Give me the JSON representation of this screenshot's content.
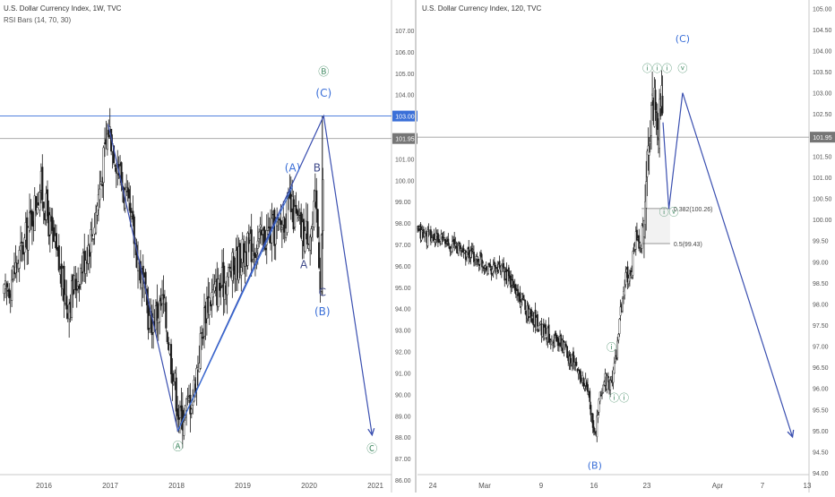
{
  "chart_data": [
    {
      "type": "candlestick",
      "title": "U.S. Dollar Currency Index, 1W, TVC",
      "indicator": "RSI Bars (14, 70, 30)",
      "x_ticks": [
        "2016",
        "2017",
        "2018",
        "2019",
        "2020",
        "2021"
      ],
      "y_ticks": [
        "86.00",
        "87.00",
        "88.00",
        "89.00",
        "90.00",
        "91.00",
        "92.00",
        "93.00",
        "94.00",
        "95.00",
        "96.00",
        "97.00",
        "98.00",
        "99.00",
        "100.00",
        "101.00",
        "102.00",
        "103.00",
        "104.00",
        "105.00",
        "106.00",
        "107.00"
      ],
      "ylim": [
        86,
        107.5
      ],
      "price_labels": [
        {
          "value": 103.0,
          "text": "103.00",
          "color": "#3a6fd8"
        },
        {
          "value": 101.95,
          "text": "101.95",
          "color": "#757575"
        }
      ],
      "hlines": [
        {
          "value": 103.0,
          "color": "#3a6fd8"
        },
        {
          "value": 101.95,
          "color": "#9e9e9e"
        }
      ],
      "series_anchor_points": [
        {
          "x": 2015.4,
          "y": 94.5
        },
        {
          "x": 2015.7,
          "y": 97.0
        },
        {
          "x": 2015.95,
          "y": 99.8
        },
        {
          "x": 2016.15,
          "y": 97.0
        },
        {
          "x": 2016.35,
          "y": 94.2
        },
        {
          "x": 2016.55,
          "y": 95.8
        },
        {
          "x": 2016.75,
          "y": 97.8
        },
        {
          "x": 2016.98,
          "y": 102.5
        },
        {
          "x": 2017.15,
          "y": 100.3
        },
        {
          "x": 2017.35,
          "y": 97.5
        },
        {
          "x": 2017.6,
          "y": 93.3
        },
        {
          "x": 2017.8,
          "y": 94.3
        },
        {
          "x": 2018.05,
          "y": 88.8
        },
        {
          "x": 2018.25,
          "y": 90.0
        },
        {
          "x": 2018.45,
          "y": 94.3
        },
        {
          "x": 2018.7,
          "y": 95.2
        },
        {
          "x": 2019.0,
          "y": 96.6
        },
        {
          "x": 2019.3,
          "y": 97.3
        },
        {
          "x": 2019.55,
          "y": 97.8
        },
        {
          "x": 2019.7,
          "y": 98.8
        },
        {
          "x": 2019.9,
          "y": 97.5
        },
        {
          "x": 2020.05,
          "y": 97.8
        },
        {
          "x": 2020.1,
          "y": 99.0
        },
        {
          "x": 2020.17,
          "y": 95.5
        },
        {
          "x": 2020.22,
          "y": 101.0
        }
      ],
      "wave_path": [
        {
          "x": 2016.97,
          "y": 102.6
        },
        {
          "x": 2018.02,
          "y": 88.3
        },
        {
          "x": 2020.22,
          "y": 103.0
        },
        {
          "x": 2020.95,
          "y": 88.1
        }
      ],
      "wave_inner_path": [
        {
          "x": 2018.02,
          "y": 88.3
        },
        {
          "x": 2019.75,
          "y": 99.7
        }
      ],
      "wave_labels": [
        {
          "text": "Ⓑ",
          "x": 2020.22,
          "y": 104.9,
          "color": "#4a8f6a"
        },
        {
          "text": "(C)",
          "x": 2020.22,
          "y": 103.9,
          "color": "#3a6fd8"
        },
        {
          "text": "(A)",
          "x": 2019.75,
          "y": 100.4,
          "color": "#3a6fd8"
        },
        {
          "text": "B",
          "x": 2020.12,
          "y": 100.4,
          "color": "#3f4a8a"
        },
        {
          "text": "A",
          "x": 2019.92,
          "y": 95.9,
          "color": "#3f4a8a"
        },
        {
          "text": "C",
          "x": 2020.2,
          "y": 94.6,
          "color": "#3f4a8a"
        },
        {
          "text": "(B)",
          "x": 2020.2,
          "y": 93.7,
          "color": "#3a6fd8"
        },
        {
          "text": "Ⓐ",
          "x": 2018.02,
          "y": 87.4,
          "color": "#4a8f6a"
        },
        {
          "text": "Ⓒ",
          "x": 2020.95,
          "y": 87.3,
          "color": "#4a8f6a"
        }
      ]
    },
    {
      "type": "candlestick",
      "title": "U.S. Dollar Currency Index, 120, TVC",
      "x_ticks": [
        "24",
        "Mar",
        "9",
        "16",
        "23",
        "Apr",
        "7",
        "13"
      ],
      "y_ticks": [
        "94.00",
        "94.50",
        "95.00",
        "95.50",
        "96.00",
        "96.50",
        "97.00",
        "97.50",
        "98.00",
        "98.50",
        "99.00",
        "99.50",
        "100.00",
        "100.50",
        "101.00",
        "101.50",
        "102.00",
        "102.50",
        "103.00",
        "103.50",
        "104.00",
        "104.50",
        "105.00"
      ],
      "ylim": [
        94.0,
        105.05
      ],
      "price_labels": [
        {
          "value": 101.95,
          "text": "101.95",
          "color": "#757575"
        }
      ],
      "hlines": [
        {
          "value": 101.95,
          "color": "#9e9e9e"
        }
      ],
      "fib_levels": [
        {
          "value": 100.26,
          "label": "0.382(100.26)"
        },
        {
          "value": 99.43,
          "label": "0.5(99.43)"
        }
      ],
      "series_anchor_points": [
        {
          "x": 0.0,
          "y": 99.7
        },
        {
          "x": 0.12,
          "y": 99.4
        },
        {
          "x": 0.22,
          "y": 99.0
        },
        {
          "x": 0.3,
          "y": 98.7
        },
        {
          "x": 0.38,
          "y": 97.8
        },
        {
          "x": 0.44,
          "y": 97.3
        },
        {
          "x": 0.5,
          "y": 97.0
        },
        {
          "x": 0.54,
          "y": 96.5
        },
        {
          "x": 0.58,
          "y": 96.0
        },
        {
          "x": 0.605,
          "y": 94.8
        },
        {
          "x": 0.622,
          "y": 95.7
        },
        {
          "x": 0.64,
          "y": 96.3
        },
        {
          "x": 0.655,
          "y": 96.0
        },
        {
          "x": 0.675,
          "y": 96.6
        },
        {
          "x": 0.695,
          "y": 97.9
        },
        {
          "x": 0.712,
          "y": 98.7
        },
        {
          "x": 0.725,
          "y": 98.6
        },
        {
          "x": 0.745,
          "y": 99.6
        },
        {
          "x": 0.76,
          "y": 99.3
        },
        {
          "x": 0.775,
          "y": 100.2
        },
        {
          "x": 0.788,
          "y": 101.8
        },
        {
          "x": 0.8,
          "y": 102.6
        },
        {
          "x": 0.812,
          "y": 102.9
        },
        {
          "x": 0.82,
          "y": 102.2
        },
        {
          "x": 0.83,
          "y": 102.9
        },
        {
          "x": 0.838,
          "y": 102.3
        }
      ],
      "wave_path": [
        {
          "x": 0.838,
          "y": 102.3
        },
        {
          "x": 0.858,
          "y": 100.25
        },
        {
          "x": 0.905,
          "y": 103.0
        },
        {
          "x": 1.28,
          "y": 94.85
        }
      ],
      "fib_box": {
        "x_start": 0.765,
        "x_end": 0.862
      },
      "wave_labels": [
        {
          "text": "(C)",
          "x": 0.905,
          "y": 104.2,
          "color": "#3a6fd8"
        },
        {
          "text": "ⓥ",
          "x": 0.905,
          "y": 103.5,
          "color": "#4a8f6a"
        },
        {
          "text": "ⓘⓘⓘ",
          "x": 0.818,
          "y": 103.5,
          "color": "#4a8f6a"
        },
        {
          "text": "ⓘⓥ",
          "x": 0.858,
          "y": 100.1,
          "color": "#4a8f6a"
        },
        {
          "text": "ⓘ",
          "x": 0.662,
          "y": 96.9,
          "color": "#4a8f6a"
        },
        {
          "text": "ⓘⓘ",
          "x": 0.688,
          "y": 95.7,
          "color": "#4a8f6a"
        },
        {
          "text": "(B)",
          "x": 0.605,
          "y": 94.1,
          "color": "#3a6fd8"
        }
      ]
    }
  ]
}
